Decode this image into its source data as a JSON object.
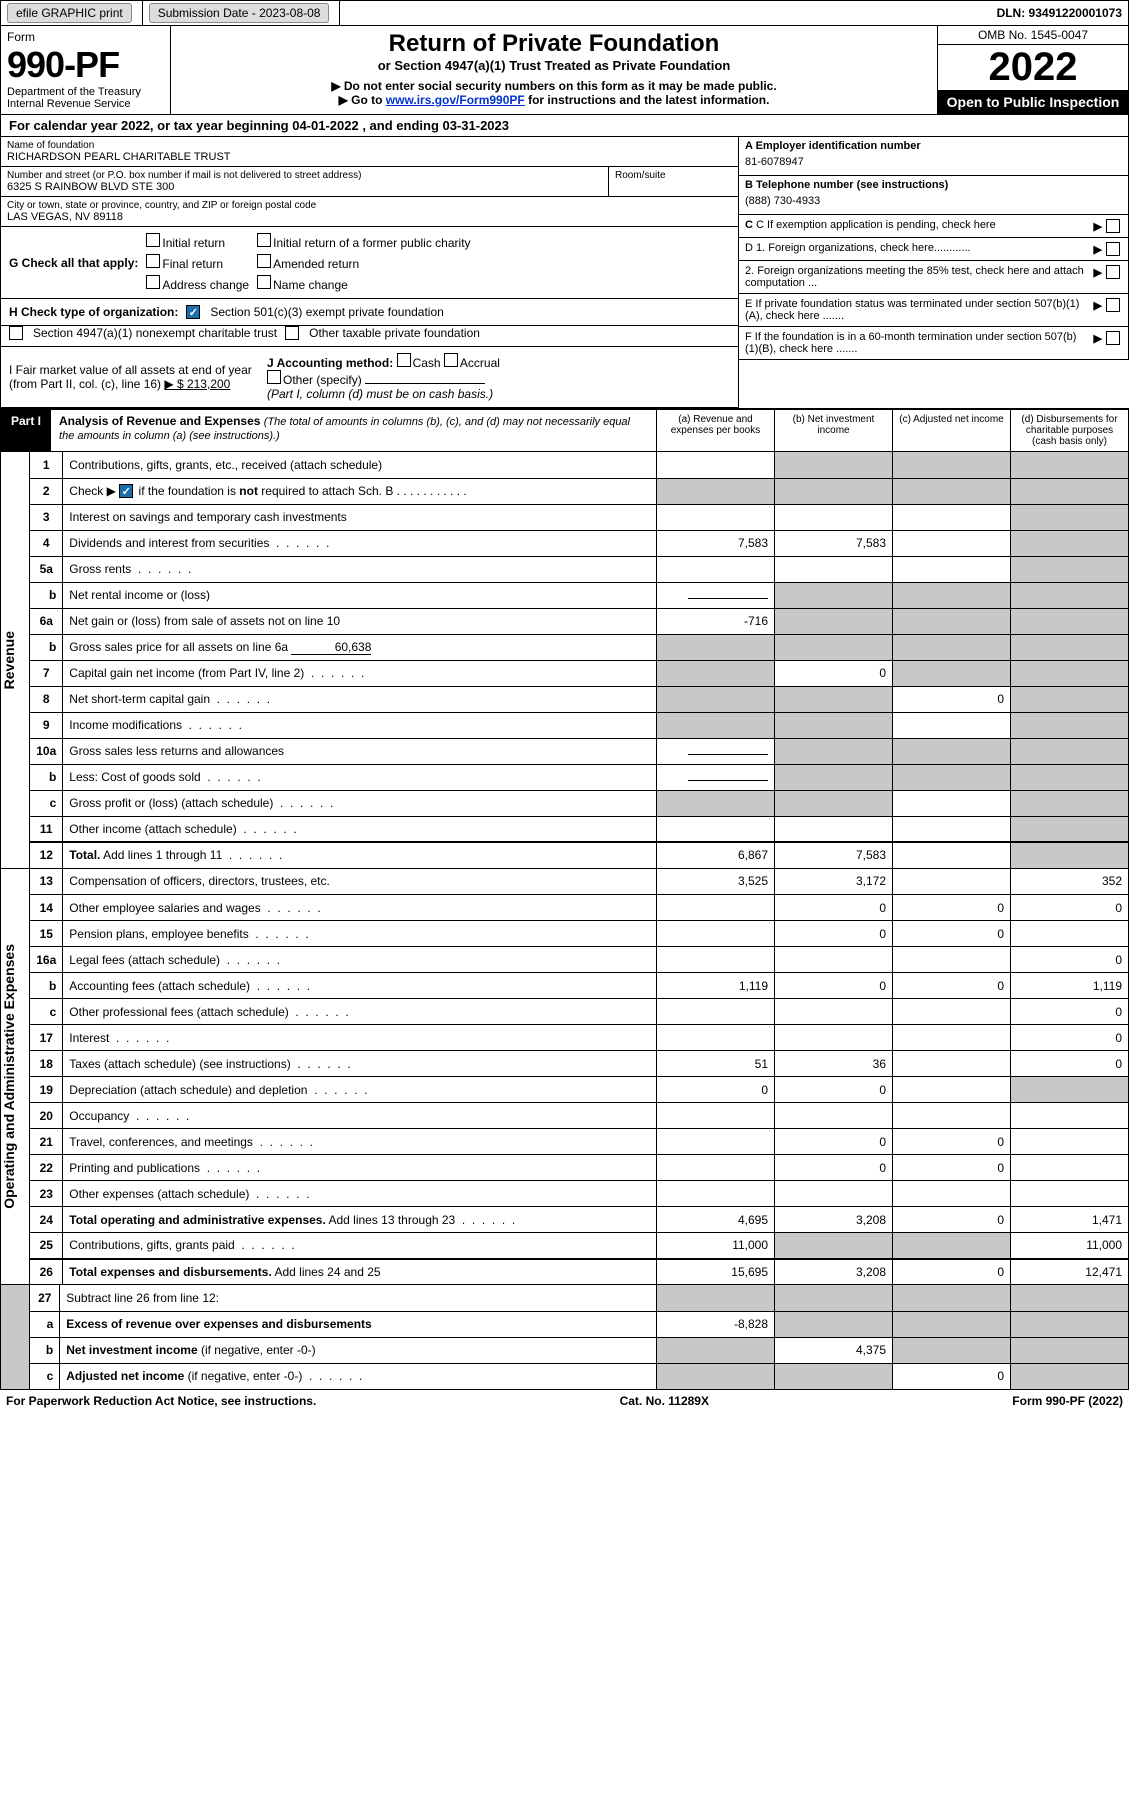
{
  "topbar": {
    "efile": "efile GRAPHIC print",
    "sub_lbl": "Submission Date - 2023-08-08",
    "dln": "DLN: 93491220001073"
  },
  "header": {
    "form_word": "Form",
    "form_no": "990-PF",
    "dept": "Department of the Treasury",
    "irs": "Internal Revenue Service",
    "title": "Return of Private Foundation",
    "subtitle": "or Section 4947(a)(1) Trust Treated as Private Foundation",
    "note1": "▶ Do not enter social security numbers on this form as it may be made public.",
    "note2": "▶ Go to ",
    "link": "www.irs.gov/Form990PF",
    "note2b": " for instructions and the latest information.",
    "omb": "OMB No. 1545-0047",
    "year": "2022",
    "badge": "Open to Public Inspection"
  },
  "cal": "For calendar year 2022, or tax year beginning 04-01-2022         , and ending 03-31-2023",
  "name_lbl": "Name of foundation",
  "name": "RICHARDSON PEARL CHARITABLE TRUST",
  "addr_lbl": "Number and street (or P.O. box number if mail is not delivered to street address)",
  "addr": "6325 S RAINBOW BLVD STE 300",
  "room_lbl": "Room/suite",
  "city_lbl": "City or town, state or province, country, and ZIP or foreign postal code",
  "city": "LAS VEGAS, NV  89118",
  "ein_lbl": "A Employer identification number",
  "ein": "81-6078947",
  "tel_lbl": "B Telephone number (see instructions)",
  "tel": "(888) 730-4933",
  "c_lbl": "C If exemption application is pending, check here",
  "d1": "D 1. Foreign organizations, check here............",
  "d2": "2. Foreign organizations meeting the 85% test, check here and attach computation ...",
  "e_lbl": "E  If private foundation status was terminated under section 507(b)(1)(A), check here .......",
  "f_lbl": "F  If the foundation is in a 60-month termination under section 507(b)(1)(B), check here .......",
  "g_lbl": "G Check all that apply:",
  "g_items": [
    "Initial return",
    "Initial return of a former public charity",
    "Final return",
    "Amended return",
    "Address change",
    "Name change"
  ],
  "h_lbl": "H Check type of organization:",
  "h1": "Section 501(c)(3) exempt private foundation",
  "h2": "Section 4947(a)(1) nonexempt charitable trust",
  "h3": "Other taxable private foundation",
  "i_lbl": "I Fair market value of all assets at end of year (from Part II, col. (c), line 16)",
  "i_val": "▶ $  213,200",
  "j_lbl": "J Accounting method:",
  "j_cash": "Cash",
  "j_acc": "Accrual",
  "j_other": "Other (specify)",
  "j_note": "(Part I, column (d) must be on cash basis.)",
  "part1": {
    "label": "Part I",
    "title": "Analysis of Revenue and Expenses",
    "note": "(The total of amounts in columns (b), (c), and (d) may not necessarily equal the amounts in column (a) (see instructions).)",
    "cols": [
      "(a)  Revenue and expenses per books",
      "(b)  Net investment income",
      "(c)  Adjusted net income",
      "(d)  Disbursements for charitable purposes (cash basis only)"
    ]
  },
  "side_rev": "Revenue",
  "side_exp": "Operating and Administrative Expenses",
  "rows": [
    {
      "n": "1",
      "t": "Contributions, gifts, grants, etc., received (attach schedule)",
      "a": "",
      "b": "sh",
      "c": "sh",
      "d": "sh"
    },
    {
      "n": "2",
      "t": "Check ▶ [✓] if the foundation is <b>not</b> required to attach Sch. B",
      "sp": true
    },
    {
      "n": "3",
      "t": "Interest on savings and temporary cash investments",
      "a": "",
      "b": "",
      "c": "",
      "d": "sh"
    },
    {
      "n": "4",
      "t": "Dividends and interest from securities",
      "a": "7,583",
      "b": "7,583",
      "c": "",
      "d": "sh",
      "dots": true
    },
    {
      "n": "5a",
      "t": "Gross rents",
      "a": "",
      "b": "",
      "c": "",
      "d": "sh",
      "dots": true
    },
    {
      "n": "b",
      "t": "Net rental income or (loss)",
      "a": "inset",
      "b": "sh",
      "c": "sh",
      "d": "sh"
    },
    {
      "n": "6a",
      "t": "Net gain or (loss) from sale of assets not on line 10",
      "a": "-716",
      "b": "sh",
      "c": "sh",
      "d": "sh"
    },
    {
      "n": "b",
      "t": "Gross sales price for all assets on line 6a",
      "a": "60,638",
      "inset": true,
      "b": "sh",
      "c": "sh",
      "d": "sh"
    },
    {
      "n": "7",
      "t": "Capital gain net income (from Part IV, line 2)",
      "a": "sh",
      "b": "0",
      "c": "sh",
      "d": "sh",
      "dots": true
    },
    {
      "n": "8",
      "t": "Net short-term capital gain",
      "a": "sh",
      "b": "sh",
      "c": "0",
      "d": "sh",
      "dots": true
    },
    {
      "n": "9",
      "t": "Income modifications",
      "a": "sh",
      "b": "sh",
      "c": "",
      "d": "sh",
      "dots": true
    },
    {
      "n": "10a",
      "t": "Gross sales less returns and allowances",
      "a": "inset",
      "b": "sh",
      "c": "sh",
      "d": "sh"
    },
    {
      "n": "b",
      "t": "Less: Cost of goods sold",
      "a": "inset",
      "b": "sh",
      "c": "sh",
      "d": "sh",
      "dots": true
    },
    {
      "n": "c",
      "t": "Gross profit or (loss) (attach schedule)",
      "a": "sh",
      "b": "sh",
      "c": "",
      "d": "sh",
      "dots": true
    },
    {
      "n": "11",
      "t": "Other income (attach schedule)",
      "a": "",
      "b": "",
      "c": "",
      "d": "sh",
      "dots": true
    },
    {
      "n": "12",
      "t": "<b>Total.</b> Add lines 1 through 11",
      "a": "6,867",
      "b": "7,583",
      "c": "",
      "d": "sh",
      "thick": true,
      "dots": true
    }
  ],
  "erows": [
    {
      "n": "13",
      "t": "Compensation of officers, directors, trustees, etc.",
      "a": "3,525",
      "b": "3,172",
      "c": "",
      "d": "352"
    },
    {
      "n": "14",
      "t": "Other employee salaries and wages",
      "a": "",
      "b": "0",
      "c": "0",
      "d": "0",
      "dots": true
    },
    {
      "n": "15",
      "t": "Pension plans, employee benefits",
      "a": "",
      "b": "0",
      "c": "0",
      "d": "",
      "dots": true
    },
    {
      "n": "16a",
      "t": "Legal fees (attach schedule)",
      "a": "",
      "b": "",
      "c": "",
      "d": "0",
      "dots": true
    },
    {
      "n": "b",
      "t": "Accounting fees (attach schedule)",
      "a": "1,119",
      "b": "0",
      "c": "0",
      "d": "1,119",
      "dots": true
    },
    {
      "n": "c",
      "t": "Other professional fees (attach schedule)",
      "a": "",
      "b": "",
      "c": "",
      "d": "0",
      "dots": true
    },
    {
      "n": "17",
      "t": "Interest",
      "a": "",
      "b": "",
      "c": "",
      "d": "0",
      "dots": true
    },
    {
      "n": "18",
      "t": "Taxes (attach schedule) (see instructions)",
      "a": "51",
      "b": "36",
      "c": "",
      "d": "0",
      "dots": true
    },
    {
      "n": "19",
      "t": "Depreciation (attach schedule) and depletion",
      "a": "0",
      "b": "0",
      "c": "",
      "d": "sh",
      "dots": true
    },
    {
      "n": "20",
      "t": "Occupancy",
      "a": "",
      "b": "",
      "c": "",
      "d": "",
      "dots": true
    },
    {
      "n": "21",
      "t": "Travel, conferences, and meetings",
      "a": "",
      "b": "0",
      "c": "0",
      "d": "",
      "dots": true
    },
    {
      "n": "22",
      "t": "Printing and publications",
      "a": "",
      "b": "0",
      "c": "0",
      "d": "",
      "dots": true
    },
    {
      "n": "23",
      "t": "Other expenses (attach schedule)",
      "a": "",
      "b": "",
      "c": "",
      "d": "",
      "dots": true
    },
    {
      "n": "24",
      "t": "<b>Total operating and administrative expenses.</b> Add lines 13 through 23",
      "a": "4,695",
      "b": "3,208",
      "c": "0",
      "d": "1,471",
      "dots": true
    },
    {
      "n": "25",
      "t": "Contributions, gifts, grants paid",
      "a": "11,000",
      "b": "sh",
      "c": "sh",
      "d": "11,000",
      "dots": true
    },
    {
      "n": "26",
      "t": "<b>Total expenses and disbursements.</b> Add lines 24 and 25",
      "a": "15,695",
      "b": "3,208",
      "c": "0",
      "d": "12,471",
      "thick": true
    }
  ],
  "frows": [
    {
      "n": "27",
      "t": "Subtract line 26 from line 12:",
      "a": "sh",
      "b": "sh",
      "c": "sh",
      "d": "sh"
    },
    {
      "n": "a",
      "t": "<b>Excess of revenue over expenses and disbursements</b>",
      "a": "-8,828",
      "b": "sh",
      "c": "sh",
      "d": "sh"
    },
    {
      "n": "b",
      "t": "<b>Net investment income</b> (if negative, enter -0-)",
      "a": "sh",
      "b": "4,375",
      "c": "sh",
      "d": "sh"
    },
    {
      "n": "c",
      "t": "<b>Adjusted net income</b> (if negative, enter -0-)",
      "a": "sh",
      "b": "sh",
      "c": "0",
      "d": "sh",
      "dots": true
    }
  ],
  "foot": {
    "l": "For Paperwork Reduction Act Notice, see instructions.",
    "m": "Cat. No. 11289X",
    "r": "Form 990-PF (2022)"
  }
}
